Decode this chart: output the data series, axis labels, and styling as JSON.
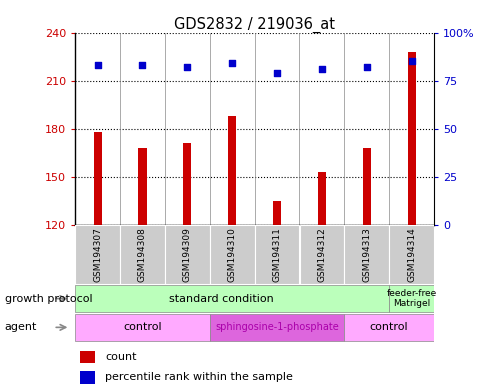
{
  "title": "GDS2832 / 219036_at",
  "samples": [
    "GSM194307",
    "GSM194308",
    "GSM194309",
    "GSM194310",
    "GSM194311",
    "GSM194312",
    "GSM194313",
    "GSM194314"
  ],
  "counts": [
    178,
    168,
    171,
    188,
    135,
    153,
    168,
    228
  ],
  "percentiles": [
    83,
    83,
    82,
    84,
    79,
    81,
    82,
    85
  ],
  "ylim_left": [
    120,
    240
  ],
  "ylim_right": [
    0,
    100
  ],
  "yticks_left": [
    120,
    150,
    180,
    210,
    240
  ],
  "yticks_right": [
    0,
    25,
    50,
    75,
    100
  ],
  "bar_color": "#cc0000",
  "dot_color": "#0000cc",
  "bar_width": 0.18,
  "growth_protocol_labels": [
    "standard condition",
    "feeder-free\nMatrigel"
  ],
  "agent_labels": [
    "control",
    "sphingosine-1-phosphate",
    "control"
  ],
  "agent_colors": [
    "#ffaaff",
    "#dd66dd",
    "#ffaaff"
  ],
  "growth_color": "#bbffbb",
  "sample_box_color": "#cccccc",
  "row_label_growth": "growth protocol",
  "row_label_agent": "agent",
  "legend_count_label": "count",
  "legend_percentile_label": "percentile rank within the sample"
}
